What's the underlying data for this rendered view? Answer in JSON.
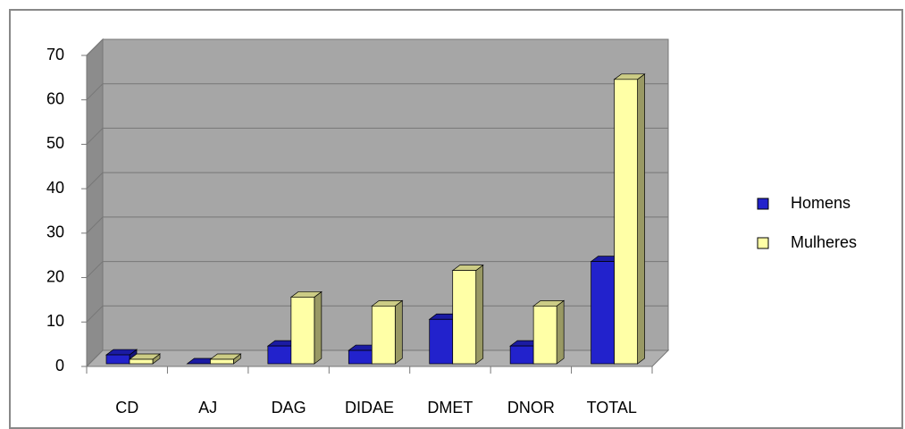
{
  "chart_data": {
    "type": "bar3d",
    "categories": [
      "CD",
      "AJ",
      "DAG",
      "DIDAE",
      "DMET",
      "DNOR",
      "TOTAL"
    ],
    "series": [
      {
        "name": "Homens",
        "color": "#2222cc",
        "values": [
          2,
          0,
          4,
          3,
          10,
          4,
          23
        ]
      },
      {
        "name": "Mulheres",
        "color": "#ffffa6",
        "values": [
          1,
          1,
          15,
          13,
          21,
          13,
          64
        ]
      }
    ],
    "ylim": [
      0,
      70
    ],
    "yticks": [
      0,
      10,
      20,
      30,
      40,
      50,
      60,
      70
    ],
    "grid": true,
    "legend": "right"
  }
}
